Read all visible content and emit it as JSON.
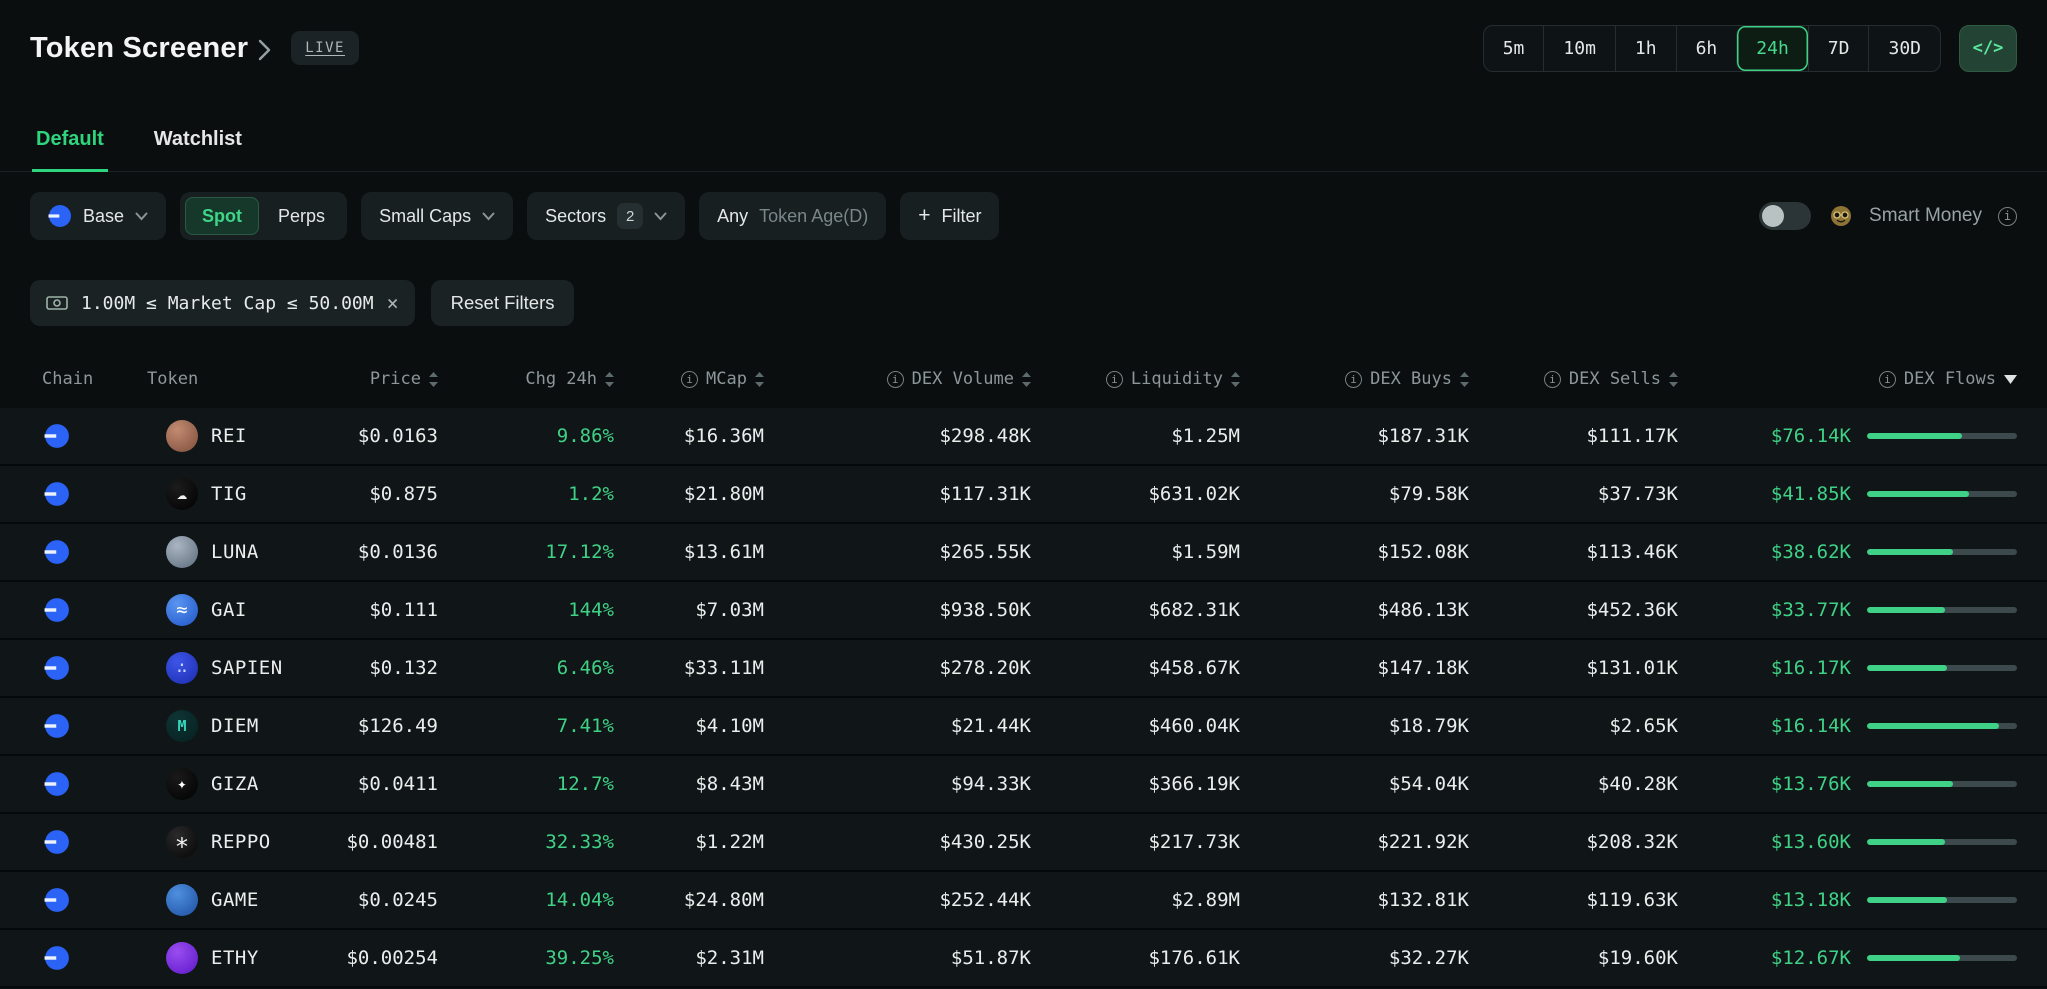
{
  "header": {
    "title": "Token Screener",
    "live_badge": "LIVE",
    "code_icon": "</>",
    "time_ranges": [
      "5m",
      "10m",
      "1h",
      "6h",
      "24h",
      "7D",
      "30D"
    ],
    "selected_range": "24h"
  },
  "tabs": {
    "default": "Default",
    "watchlist": "Watchlist",
    "active": "Default"
  },
  "filter_bar": {
    "chain": "Base",
    "spot": "Spot",
    "perps": "Perps",
    "selected_market": "Spot",
    "cap": "Small Caps",
    "sectors": "Sectors",
    "sectors_count": "2",
    "token_age_value": "Any",
    "token_age_placeholder": "Token Age(D)",
    "add_filter_plus": "+",
    "add_filter": "Filter",
    "smart_money_label": "Smart Money",
    "smart_money_on": false
  },
  "active_filters": {
    "market_cap_chip": "1.00M ≤ Market Cap ≤ 50.00M",
    "reset_button": "Reset Filters"
  },
  "colors": {
    "accent_green": "#3fd287",
    "chain_blue": "#2a63f6"
  },
  "table": {
    "columns": [
      {
        "label": "Chain",
        "info": false,
        "sort": false,
        "align": "left"
      },
      {
        "label": "Token",
        "info": false,
        "sort": false,
        "align": "left"
      },
      {
        "label": "Price",
        "info": false,
        "sort": true,
        "align": "right"
      },
      {
        "label": "Chg 24h",
        "info": false,
        "sort": true,
        "align": "right"
      },
      {
        "label": "MCap",
        "info": true,
        "sort": true,
        "align": "right"
      },
      {
        "label": "DEX Volume",
        "info": true,
        "sort": true,
        "align": "right"
      },
      {
        "label": "Liquidity",
        "info": true,
        "sort": true,
        "align": "right"
      },
      {
        "label": "DEX Buys",
        "info": true,
        "sort": true,
        "align": "right"
      },
      {
        "label": "DEX Sells",
        "info": true,
        "sort": true,
        "align": "right"
      },
      {
        "label": "DEX Flows",
        "info": true,
        "sort": true,
        "align": "right",
        "sorted": "desc"
      }
    ],
    "rows": [
      {
        "chain": "Base",
        "token": "REI",
        "price": "$0.0163",
        "chg": "9.86%",
        "mcap": "$16.36M",
        "volume": "$298.48K",
        "liquidity": "$1.25M",
        "buys": "$187.31K",
        "sells": "$111.17K",
        "flows": "$76.14K",
        "flow_pct": 63,
        "icon": {
          "bg1": "#c28b72",
          "bg2": "#7e4d3b",
          "glyph": "",
          "glyph_color": "#ffffff"
        }
      },
      {
        "chain": "Base",
        "token": "TIG",
        "price": "$0.875",
        "chg": "1.2%",
        "mcap": "$21.80M",
        "volume": "$117.31K",
        "liquidity": "$631.02K",
        "buys": "$79.58K",
        "sells": "$37.73K",
        "flows": "$41.85K",
        "flow_pct": 68,
        "icon": {
          "bg1": "#1c1c1c",
          "bg2": "#000000",
          "glyph": "☁",
          "glyph_color": "#f0f0f0"
        }
      },
      {
        "chain": "Base",
        "token": "LUNA",
        "price": "$0.0136",
        "chg": "17.12%",
        "mcap": "$13.61M",
        "volume": "$265.55K",
        "liquidity": "$1.59M",
        "buys": "$152.08K",
        "sells": "$113.46K",
        "flows": "$38.62K",
        "flow_pct": 57,
        "icon": {
          "bg1": "#aab6c2",
          "bg2": "#5c6a7a",
          "glyph": "",
          "glyph_color": "#ffffff"
        }
      },
      {
        "chain": "Base",
        "token": "GAI",
        "price": "$0.111",
        "chg": "144%",
        "mcap": "$7.03M",
        "volume": "$938.50K",
        "liquidity": "$682.31K",
        "buys": "$486.13K",
        "sells": "$452.36K",
        "flows": "$33.77K",
        "flow_pct": 52,
        "icon": {
          "bg1": "#5a95f0",
          "bg2": "#1f55c8",
          "glyph": "≈",
          "glyph_color": "#ffffff",
          "glyph_size": 19
        }
      },
      {
        "chain": "Base",
        "token": "SAPIEN",
        "price": "$0.132",
        "chg": "6.46%",
        "mcap": "$33.11M",
        "volume": "$278.20K",
        "liquidity": "$458.67K",
        "buys": "$147.18K",
        "sells": "$131.01K",
        "flows": "$16.17K",
        "flow_pct": 53,
        "icon": {
          "bg1": "#3d55e8",
          "bg2": "#1b2cae",
          "glyph": "∴",
          "glyph_color": "#cdd6ff"
        }
      },
      {
        "chain": "Base",
        "token": "DIEM",
        "price": "$126.49",
        "chg": "7.41%",
        "mcap": "$4.10M",
        "volume": "$21.44K",
        "liquidity": "$460.04K",
        "buys": "$18.79K",
        "sells": "$2.65K",
        "flows": "$16.14K",
        "flow_pct": 88,
        "icon": {
          "bg1": "#0f3434",
          "bg2": "#062020",
          "glyph": "M",
          "glyph_color": "#37d6bd",
          "glyph_size": 15,
          "glyph_bold": true
        }
      },
      {
        "chain": "Base",
        "token": "GIZA",
        "price": "$0.0411",
        "chg": "12.7%",
        "mcap": "$8.43M",
        "volume": "$94.33K",
        "liquidity": "$366.19K",
        "buys": "$54.04K",
        "sells": "$40.28K",
        "flows": "$13.76K",
        "flow_pct": 57,
        "icon": {
          "bg1": "#1a1a1a",
          "bg2": "#000000",
          "glyph": "✦",
          "glyph_color": "#ffffff",
          "glyph_size": 16
        }
      },
      {
        "chain": "Base",
        "token": "REPPO",
        "price": "$0.00481",
        "chg": "32.33%",
        "mcap": "$1.22M",
        "volume": "$430.25K",
        "liquidity": "$217.73K",
        "buys": "$221.92K",
        "sells": "$208.32K",
        "flows": "$13.60K",
        "flow_pct": 52,
        "icon": {
          "bg1": "#2a2a2a",
          "bg2": "#050505",
          "glyph": "∗",
          "glyph_color": "#f2f2f2",
          "glyph_size": 24
        }
      },
      {
        "chain": "Base",
        "token": "GAME",
        "price": "$0.0245",
        "chg": "14.04%",
        "mcap": "$24.80M",
        "volume": "$252.44K",
        "liquidity": "$2.89M",
        "buys": "$132.81K",
        "sells": "$119.63K",
        "flows": "$13.18K",
        "flow_pct": 53,
        "icon": {
          "bg1": "#4f8fe0",
          "bg2": "#1d4f9e",
          "glyph": "",
          "glyph_color": "#ffffff"
        }
      },
      {
        "chain": "Base",
        "token": "ETHY",
        "price": "$0.00254",
        "chg": "39.25%",
        "mcap": "$2.31M",
        "volume": "$51.87K",
        "liquidity": "$176.61K",
        "buys": "$32.27K",
        "sells": "$19.60K",
        "flows": "$12.67K",
        "flow_pct": 62,
        "icon": {
          "bg1": "#9a4df0",
          "bg2": "#5b18c8",
          "glyph": "",
          "glyph_color": "#ffffff"
        }
      }
    ]
  }
}
